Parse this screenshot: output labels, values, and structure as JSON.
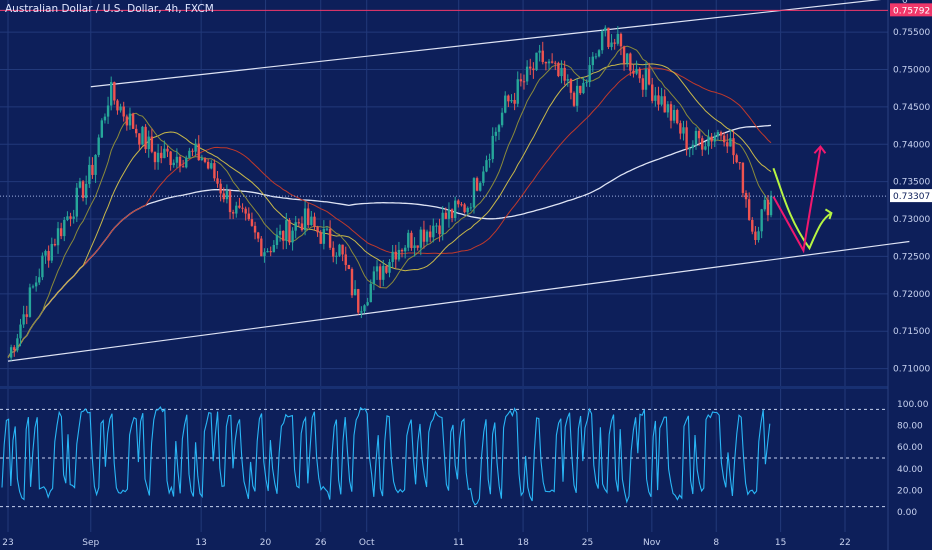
{
  "header": {
    "symbol_title": "Australian Dollar / U.S. Dollar, 4h, FXCM",
    "currency": "USD"
  },
  "colors": {
    "background": "#0d1f5a",
    "grid": "#22397a",
    "up_candle": "#26a69a",
    "down_candle": "#ef5350",
    "channel_line": "#dfe4f5",
    "resistance_line": "#f0376a",
    "ma_white": "#dfe4f5",
    "ma_red": "#c0392b",
    "ma_yellow": "#c8b84a",
    "ma_olive": "#8a8a3a",
    "oscillator": "#29b6f6",
    "arrow_green": "#b6f542",
    "arrow_pink": "#f0186e"
  },
  "chart_data": [
    {
      "type": "candlestick",
      "name": "price-chart",
      "y_axis_ticks": [
        "0.75500",
        "0.75000",
        "0.74500",
        "0.74000",
        "0.73500",
        "0.73000",
        "0.72500",
        "0.72000",
        "0.71500",
        "0.71000"
      ],
      "y_range": [
        0.707,
        0.7585
      ],
      "x_axis_ticks": [
        "23",
        "Sep",
        "13",
        "20",
        "26",
        "Oct",
        "11",
        "18",
        "25",
        "Nov",
        "8",
        "15",
        "22"
      ],
      "price_labels": {
        "resistance": "0.75792",
        "last": "0.73307",
        "axis_top": "0"
      },
      "series": [
        {
          "name": "",
          "x": [
            "Aug 23",
            "Aug 27",
            "Sep 1",
            "Sep 3",
            "Sep 8",
            "Sep 13",
            "Sep 17",
            "Sep 20",
            "Sep 24",
            "Sep 28",
            "Sep 30",
            "Oct 4",
            "Oct 8",
            "Oct 12",
            "Oct 16",
            "Oct 20",
            "Oct 24",
            "Oct 27",
            "Oct 29",
            "Nov 2",
            "Nov 5",
            "Nov 9",
            "Nov 11",
            "Nov 12",
            "Nov 14"
          ],
          "close": [
            0.7115,
            0.725,
            0.736,
            0.747,
            0.7385,
            0.7385,
            0.7305,
            0.726,
            0.73,
            0.726,
            0.7185,
            0.726,
            0.729,
            0.732,
            0.745,
            0.7515,
            0.746,
            0.755,
            0.752,
            0.746,
            0.74,
            0.742,
            0.7345,
            0.7282,
            0.7331
          ]
        }
      ],
      "channel_bounds": {
        "upper": {
          "x": [
            "Sep 1",
            "Nov 29"
          ],
          "y": [
            0.7477,
            0.7598
          ]
        },
        "lower": {
          "x": [
            "Aug 23",
            "Nov 29"
          ],
          "y": [
            0.711,
            0.727
          ]
        }
      },
      "resistance_level": 0.75792
    },
    {
      "type": "line",
      "name": "oscillator",
      "y_axis_ticks": [
        "100.00",
        "80.00",
        "60.00",
        "40.00",
        "20.00",
        "0.00"
      ],
      "y_range": [
        0,
        100
      ],
      "reference_levels": [
        95,
        50,
        5
      ]
    }
  ]
}
